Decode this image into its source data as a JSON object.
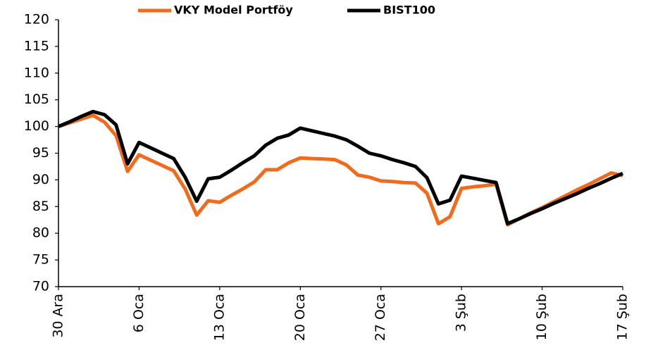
{
  "chart_data": {
    "type": "line",
    "categories": [
      "30 Ara",
      null,
      null,
      null,
      null,
      null,
      null,
      "6 Oca",
      null,
      null,
      null,
      null,
      null,
      null,
      "13 Oca",
      null,
      null,
      null,
      null,
      null,
      null,
      "20 Oca",
      null,
      null,
      null,
      null,
      null,
      null,
      "27 Oca",
      null,
      null,
      null,
      null,
      null,
      null,
      "3 Şub",
      null,
      null,
      null,
      null,
      null,
      null,
      "10 Şub",
      null,
      null,
      null,
      null,
      null,
      null,
      "17 Şub"
    ],
    "series": [
      {
        "name": "VKY Model Portföy",
        "color": "#f26b1d",
        "values": [
          100,
          100.7,
          101.4,
          102.1,
          100.8,
          98.3,
          91.6,
          94.7,
          93.7,
          92.7,
          91.7,
          88.3,
          83.4,
          86.1,
          85.8,
          87.1,
          88.3,
          89.6,
          91.9,
          91.9,
          93.2,
          94.1,
          94,
          93.9,
          93.8,
          92.8,
          90.9,
          90.5,
          89.8,
          89.7,
          89.5,
          89.4,
          87.5,
          81.8,
          83.1,
          88.4,
          88.7,
          88.9,
          89.2,
          81.6,
          82.7,
          83.8,
          84.8,
          85.9,
          87,
          88.1,
          89.1,
          90.2,
          91.3,
          90.8
        ]
      },
      {
        "name": "BIST100",
        "color": "#000000",
        "values": [
          100,
          100.9,
          101.9,
          102.8,
          102.2,
          100.3,
          93,
          97,
          96,
          95,
          94,
          90.5,
          86,
          90.2,
          90.5,
          91.8,
          93.2,
          94.5,
          96.5,
          97.8,
          98.4,
          99.7,
          99.2,
          98.7,
          98.2,
          97.5,
          96.3,
          95,
          94.5,
          93.8,
          93.2,
          92.5,
          90.4,
          85.5,
          86.2,
          90.7,
          90.3,
          89.9,
          89.5,
          81.8,
          82.7,
          83.7,
          84.6,
          85.6,
          86.5,
          87.4,
          88.4,
          89.3,
          90.3,
          91.2
        ]
      }
    ],
    "ylim": [
      70,
      120
    ],
    "yticks": [
      70,
      75,
      80,
      85,
      90,
      95,
      100,
      105,
      110,
      115,
      120
    ],
    "grid": false,
    "legend": "top"
  }
}
